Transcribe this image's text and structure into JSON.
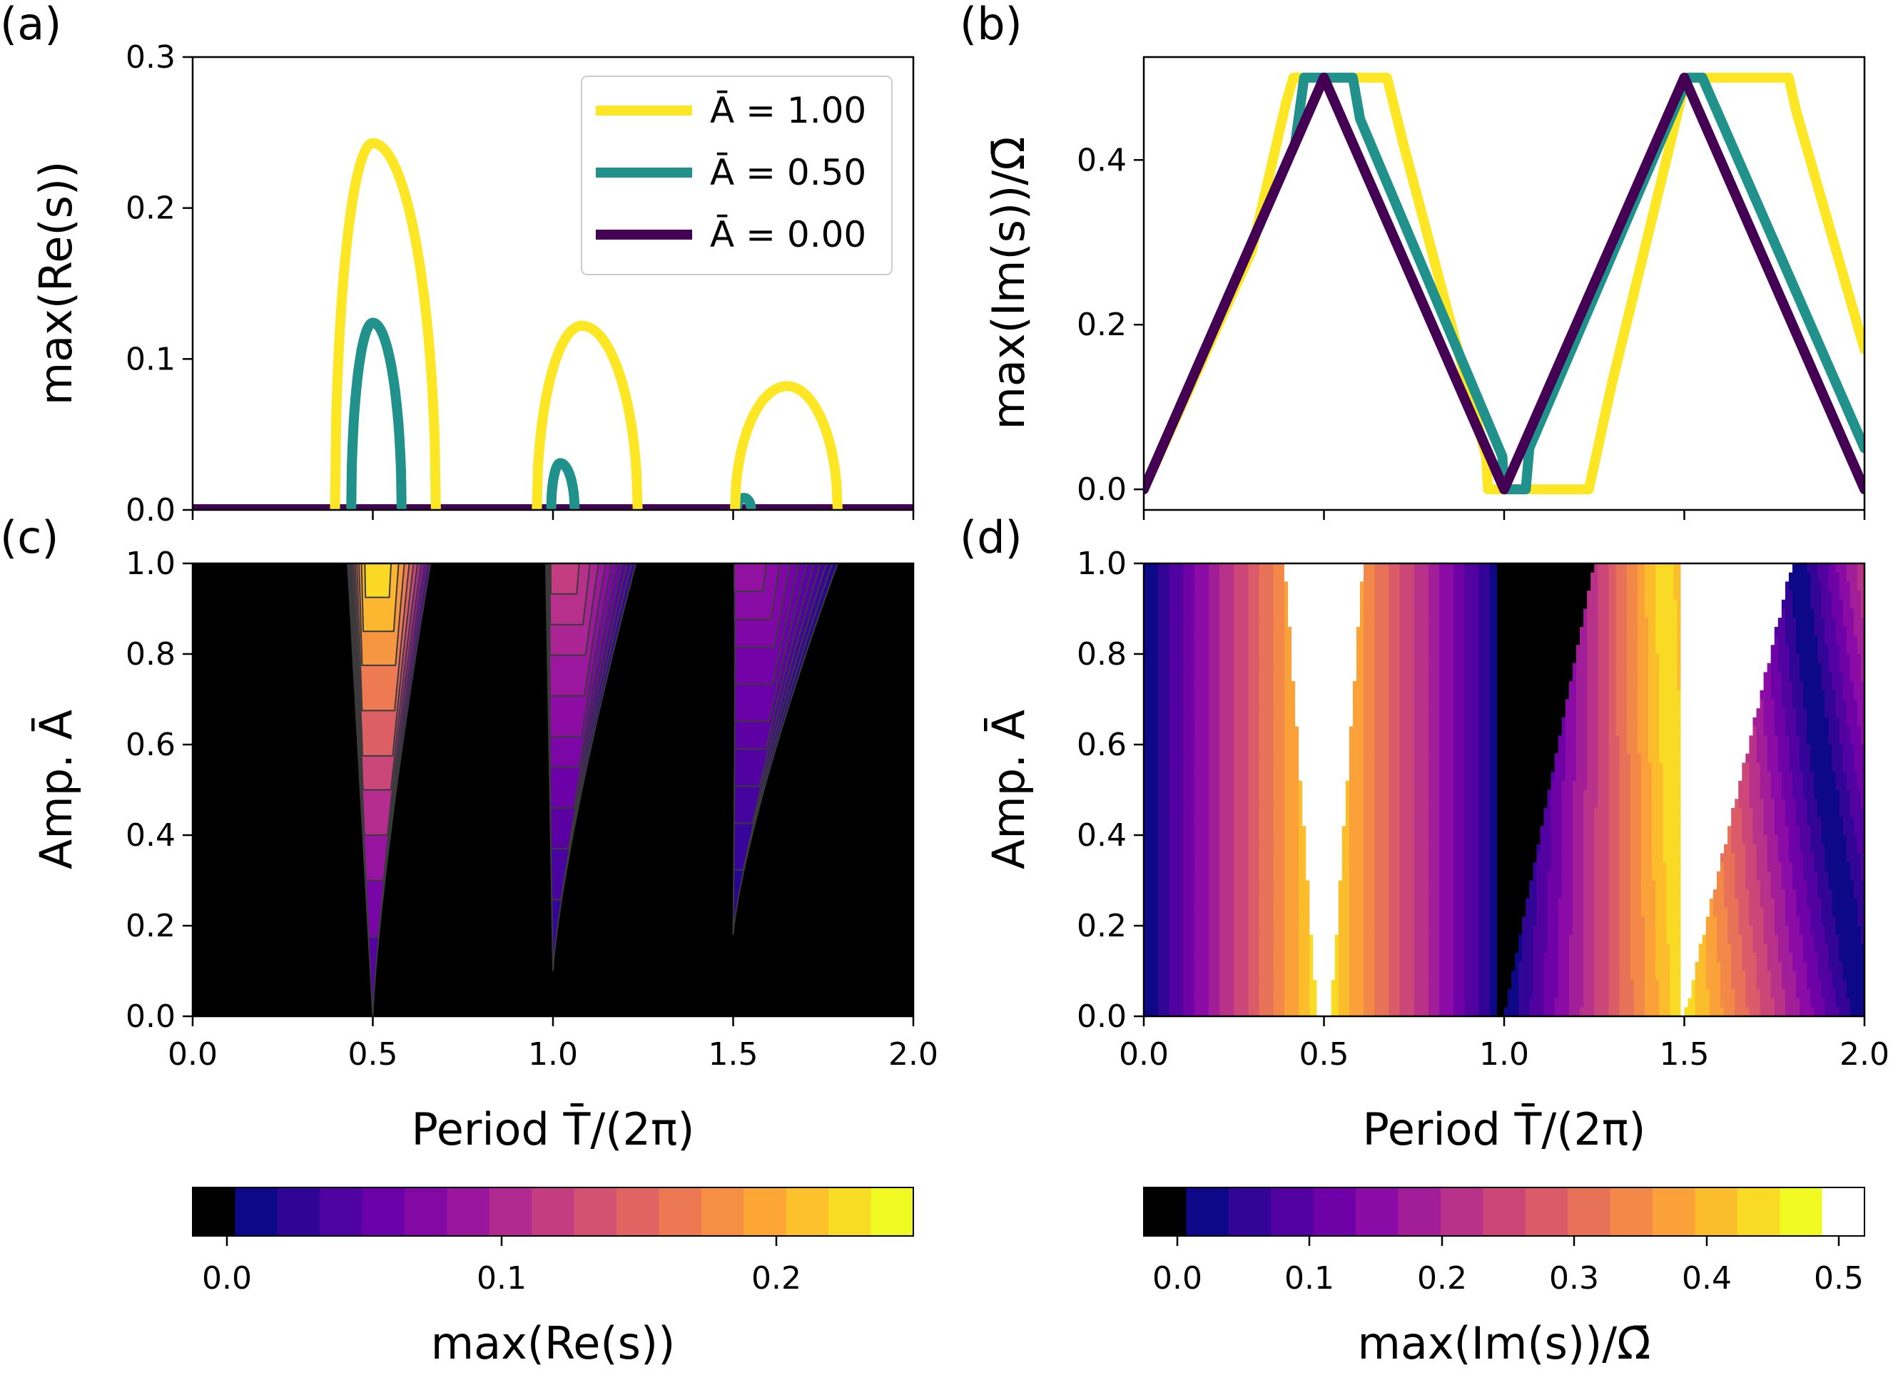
{
  "panels": {
    "a": {
      "label": "(a)",
      "ylabel": "max(Re(s))",
      "yticks": [
        "0.0",
        "0.1",
        "0.2",
        "0.3"
      ]
    },
    "b": {
      "label": "(b)",
      "ylabel": "max(Im(s))/Ω̄",
      "yticks": [
        "0.0",
        "0.2",
        "0.4"
      ]
    },
    "c": {
      "label": "(c)",
      "ylabel": "Amp. Ā",
      "yticks": [
        "0.0",
        "0.2",
        "0.4",
        "0.6",
        "0.8",
        "1.0"
      ]
    },
    "d": {
      "label": "(d)",
      "ylabel": "Amp. Ā",
      "yticks": [
        "0.0",
        "0.2",
        "0.4",
        "0.6",
        "0.8",
        "1.0"
      ]
    }
  },
  "xaxis": {
    "label": "Period T̄/(2π)",
    "ticks": [
      "0.0",
      "0.5",
      "1.0",
      "1.5",
      "2.0"
    ]
  },
  "legend": [
    {
      "label": "Ā = 1.00",
      "color": "#fde725"
    },
    {
      "label": "Ā = 0.50",
      "color": "#21918c"
    },
    {
      "label": "Ā = 0.00",
      "color": "#440154"
    }
  ],
  "colorbars": {
    "re": {
      "label": "max(Re(s))",
      "ticks": [
        "0.0",
        "0.1",
        "0.2"
      ]
    },
    "im": {
      "label": "max(Im(s))/Ω̄",
      "ticks": [
        "0.0",
        "0.1",
        "0.2",
        "0.3",
        "0.4",
        "0.5"
      ]
    }
  },
  "chart_data": [
    {
      "panel": "a",
      "type": "line",
      "xlabel": "Period T̄/(2π)",
      "ylabel": "max(Re(s))",
      "xlim": [
        0,
        2
      ],
      "ylim": [
        0,
        0.3
      ],
      "series": [
        {
          "name": "Ā = 1.00",
          "color": "#fde725",
          "tongues": [
            {
              "x_start": 0.395,
              "x_end": 0.675,
              "peak_x": 0.5,
              "peak": 0.243
            },
            {
              "x_start": 0.955,
              "x_end": 1.235,
              "peak_x": 1.08,
              "peak": 0.122
            },
            {
              "x_start": 1.505,
              "x_end": 1.79,
              "peak_x": 1.65,
              "peak": 0.082
            }
          ]
        },
        {
          "name": "Ā = 0.50",
          "color": "#21918c",
          "tongues": [
            {
              "x_start": 0.44,
              "x_end": 0.58,
              "peak_x": 0.5,
              "peak": 0.124
            },
            {
              "x_start": 0.995,
              "x_end": 1.06,
              "peak_x": 1.02,
              "peak": 0.031
            },
            {
              "x_start": 1.51,
              "x_end": 1.55,
              "peak_x": 1.53,
              "peak": 0.008
            }
          ]
        },
        {
          "name": "Ā = 0.00",
          "color": "#440154",
          "tongues": []
        }
      ]
    },
    {
      "panel": "b",
      "type": "line",
      "xlabel": "Period T̄/(2π)",
      "ylabel": "max(Im(s))/Ω̄",
      "xlim": [
        0,
        2
      ],
      "ylim": [
        -0.025,
        0.525
      ],
      "series": [
        {
          "name": "Ā = 1.00",
          "color": "#fde725",
          "points": [
            [
              0,
              0
            ],
            [
              0.3,
              0.29
            ],
            [
              0.395,
              0.47
            ],
            [
              0.415,
              0.5
            ],
            [
              0.675,
              0.5
            ],
            [
              0.72,
              0.42
            ],
            [
              0.95,
              0.04
            ],
            [
              0.955,
              0
            ],
            [
              1.235,
              0
            ],
            [
              1.26,
              0.05
            ],
            [
              1.3,
              0.13
            ],
            [
              1.45,
              0.4
            ],
            [
              1.505,
              0.5
            ],
            [
              1.79,
              0.5
            ],
            [
              1.81,
              0.46
            ],
            [
              2.0,
              0.17
            ]
          ]
        },
        {
          "name": "Ā = 0.50",
          "color": "#21918c",
          "points": [
            [
              0,
              0
            ],
            [
              0.42,
              0.42
            ],
            [
              0.445,
              0.5
            ],
            [
              0.58,
              0.5
            ],
            [
              0.6,
              0.45
            ],
            [
              0.995,
              0.04
            ],
            [
              1.0,
              0
            ],
            [
              1.06,
              0
            ],
            [
              1.07,
              0.05
            ],
            [
              1.51,
              0.5
            ],
            [
              1.55,
              0.5
            ],
            [
              2.0,
              0.05
            ]
          ]
        },
        {
          "name": "Ā = 0.00",
          "color": "#440154",
          "points": [
            [
              0,
              0
            ],
            [
              0.5,
              0.5
            ],
            [
              1.0,
              0
            ],
            [
              1.5,
              0.5
            ],
            [
              2.0,
              0
            ]
          ]
        }
      ]
    },
    {
      "panel": "c",
      "type": "heatmap",
      "xlabel": "Period T̄/(2π)",
      "ylabel": "Amp. Ā",
      "xlim": [
        0,
        2
      ],
      "ylim": [
        0,
        1
      ],
      "quantity": "max(Re(s))",
      "colorscale": "plasma",
      "color_range": [
        0,
        0.24
      ],
      "tongues": [
        {
          "center": 0.5,
          "onset_amp": 0.0,
          "x_left_at_1": 0.43,
          "x_right_at_1": 0.66,
          "peak_at_1": 0.243
        },
        {
          "center": 1.0,
          "onset_amp": 0.1,
          "x_left_at_1": 0.98,
          "x_right_at_1": 1.23,
          "peak_at_1": 0.122
        },
        {
          "center": 1.5,
          "onset_amp": 0.18,
          "x_left_at_1": 1.51,
          "x_right_at_1": 1.79,
          "peak_at_1": 0.082
        }
      ]
    },
    {
      "panel": "d",
      "type": "heatmap",
      "xlabel": "Period T̄/(2π)",
      "ylabel": "Amp. Ā",
      "xlim": [
        0,
        2
      ],
      "ylim": [
        0,
        1
      ],
      "quantity": "max(Im(s))/Ω̄",
      "colorscale": "plasma",
      "color_range": [
        0,
        0.5
      ],
      "note_regions": [
        "white = 0.5 in tongue near 0.5 and 1.5",
        "black = 0 in tongue near 1.0"
      ]
    }
  ]
}
